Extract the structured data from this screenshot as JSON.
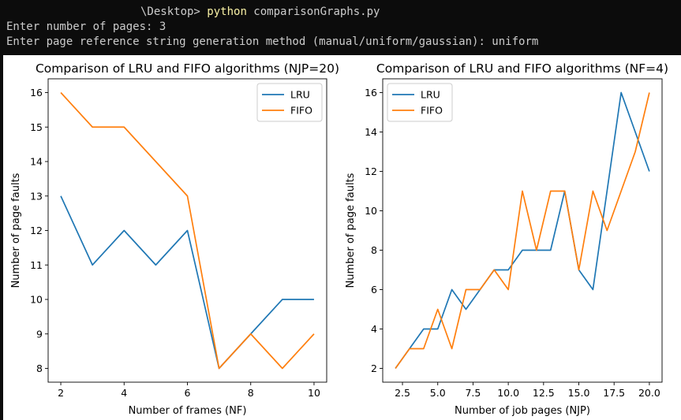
{
  "terminal": {
    "prompt_path": "\\Desktop> ",
    "command": "python",
    "command_args": " comparisonGraphs.py",
    "line2": "Enter number of pages: 3",
    "line3": "Enter page reference string generation method (manual/uniform/gaussian): uniform"
  },
  "colors": {
    "lru": "#1f77b4",
    "fifo": "#ff7f0e"
  },
  "chart_data": [
    {
      "type": "line",
      "title": "Comparison of LRU and FIFO algorithms (NJP=20)",
      "xlabel": "Number of frames (NF)",
      "ylabel": "Number of page faults",
      "x": [
        2,
        3,
        4,
        5,
        6,
        7,
        8,
        9,
        10
      ],
      "xlim": [
        1.6,
        10.4
      ],
      "ylim": [
        7.6,
        16.4
      ],
      "xticks": [
        2,
        4,
        6,
        8,
        10
      ],
      "xtick_labels": [
        "2",
        "4",
        "6",
        "8",
        "10"
      ],
      "yticks": [
        8,
        9,
        10,
        11,
        12,
        13,
        14,
        15,
        16
      ],
      "ytick_labels": [
        "8",
        "9",
        "10",
        "11",
        "12",
        "13",
        "14",
        "15",
        "16"
      ],
      "legend_position": "top-right",
      "grid": false,
      "series": [
        {
          "name": "LRU",
          "values": [
            13,
            11,
            12,
            11,
            12,
            8,
            9,
            10,
            10
          ]
        },
        {
          "name": "FIFO",
          "values": [
            16,
            15,
            15,
            14,
            13,
            8,
            9,
            8,
            9
          ]
        }
      ]
    },
    {
      "type": "line",
      "title": "Comparison of LRU and FIFO algorithms (NF=4)",
      "xlabel": "Number of job pages (NJP)",
      "ylabel": "Number of page faults",
      "x": [
        2,
        3,
        4,
        5,
        6,
        7,
        8,
        9,
        10,
        11,
        12,
        13,
        14,
        15,
        16,
        17,
        18,
        19,
        20
      ],
      "xlim": [
        1.1,
        20.9
      ],
      "ylim": [
        1.3,
        16.7
      ],
      "xticks": [
        2.5,
        5,
        7.5,
        10,
        12.5,
        15,
        17.5,
        20
      ],
      "xtick_labels": [
        "2.5",
        "5.0",
        "7.5",
        "10.0",
        "12.5",
        "15.0",
        "17.5",
        "20.0"
      ],
      "yticks": [
        2,
        4,
        6,
        8,
        10,
        12,
        14,
        16
      ],
      "ytick_labels": [
        "2",
        "4",
        "6",
        "8",
        "10",
        "12",
        "14",
        "16"
      ],
      "legend_position": "top-left",
      "grid": false,
      "series": [
        {
          "name": "LRU",
          "values": [
            2,
            3,
            4,
            4,
            6,
            5,
            6,
            7,
            7,
            8,
            8,
            8,
            11,
            7,
            6,
            11,
            16,
            14,
            12
          ]
        },
        {
          "name": "FIFO",
          "values": [
            2,
            3,
            3,
            5,
            3,
            6,
            6,
            7,
            6,
            11,
            8,
            11,
            11,
            7,
            11,
            9,
            11,
            13,
            16
          ]
        }
      ]
    }
  ]
}
